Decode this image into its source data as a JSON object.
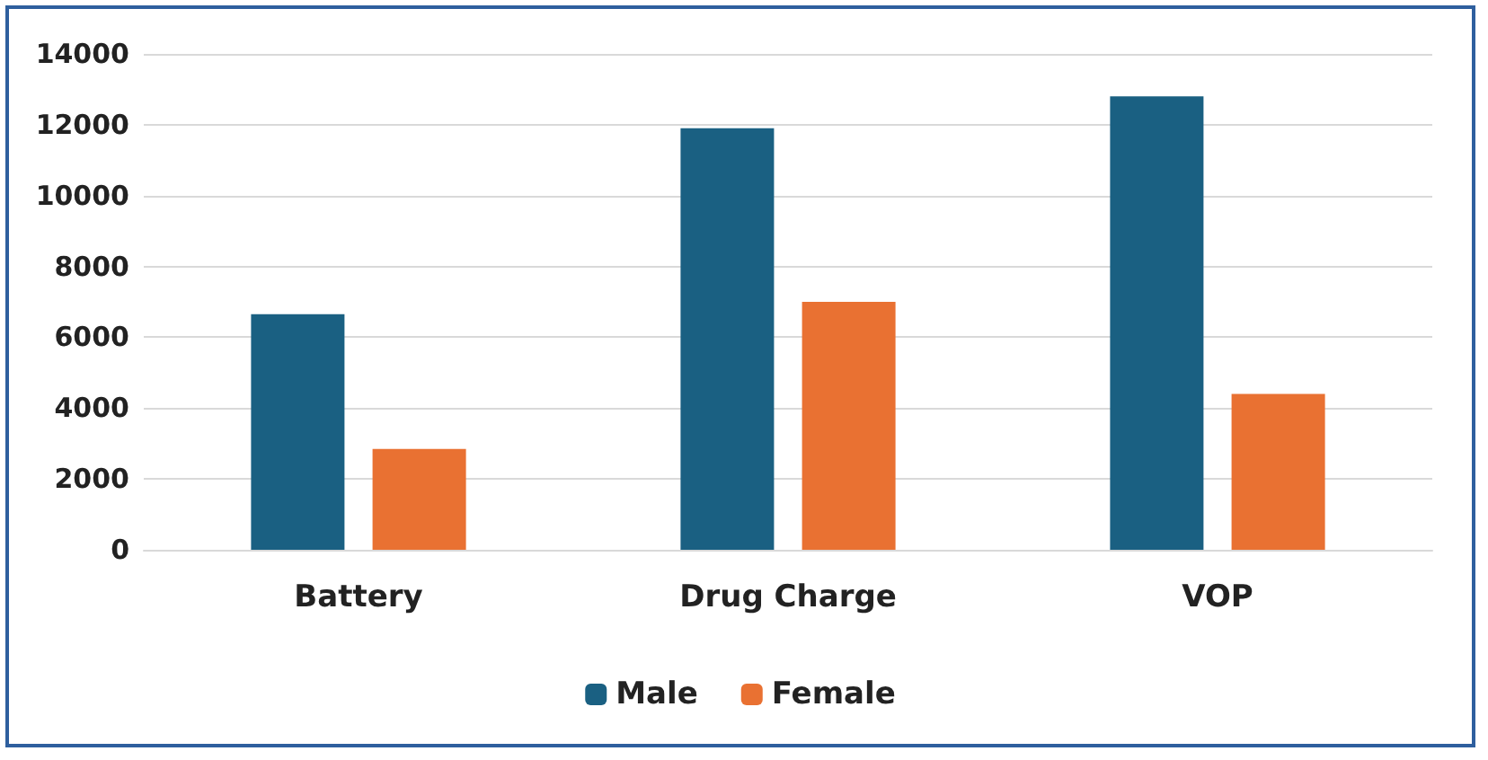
{
  "chart_data": {
    "type": "bar",
    "categories": [
      "Battery",
      "Drug Charge",
      "VOP"
    ],
    "series": [
      {
        "name": "Male",
        "color": "#1a6082",
        "values": [
          6650,
          11900,
          12800
        ]
      },
      {
        "name": "Female",
        "color": "#e97132",
        "values": [
          2850,
          7000,
          4400
        ]
      }
    ],
    "ylim": [
      0,
      14000
    ],
    "yticks": [
      0,
      2000,
      4000,
      6000,
      8000,
      10000,
      12000,
      14000
    ],
    "grid": "y",
    "legend": "bottom"
  }
}
